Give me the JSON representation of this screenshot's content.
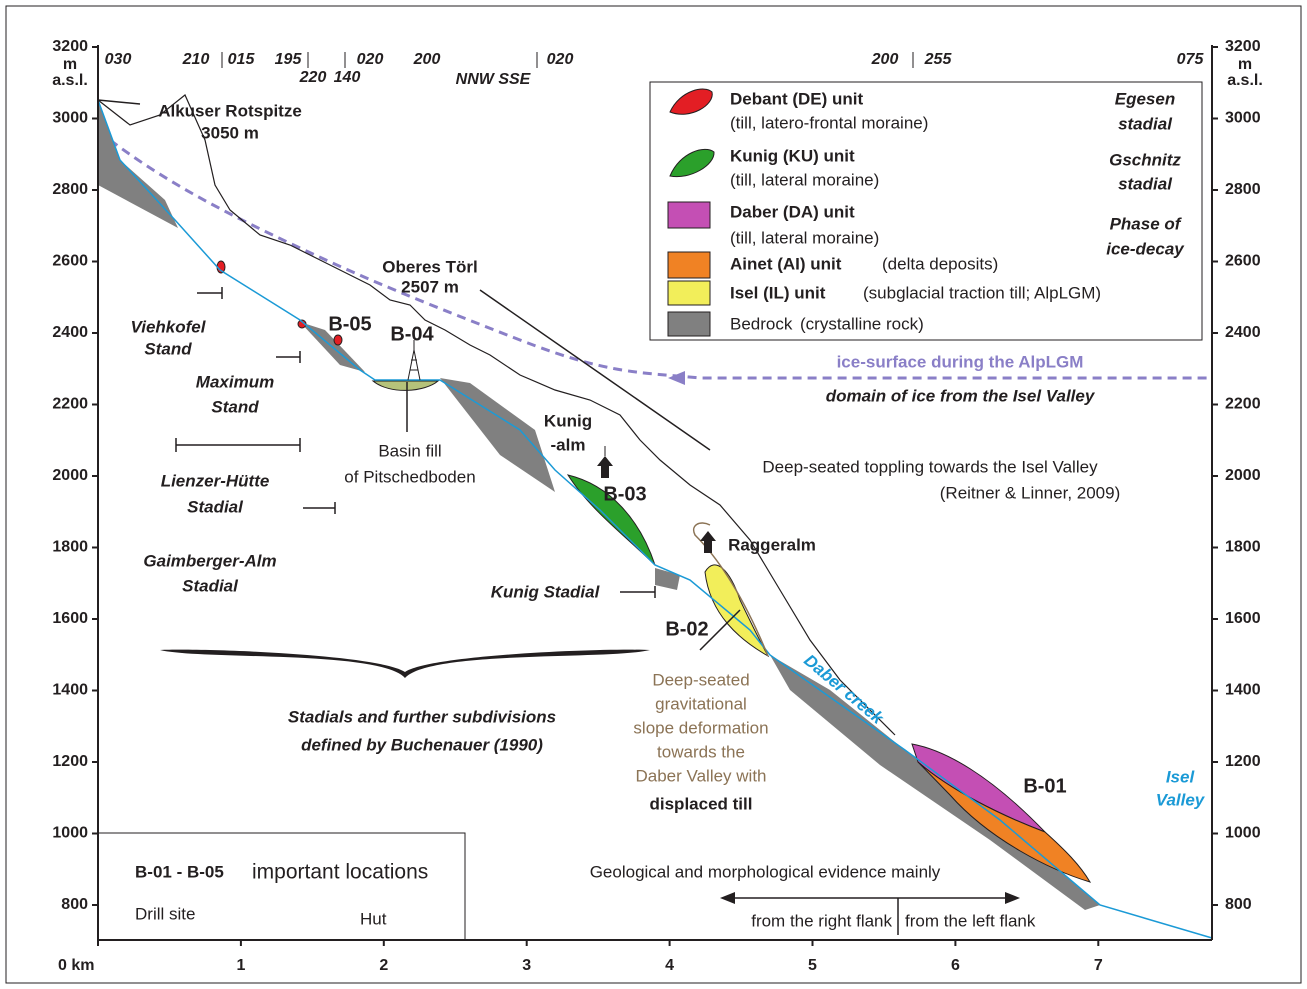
{
  "axes": {
    "x_ticks": [
      {
        "value": 0,
        "label": "0 km"
      },
      1,
      2,
      3,
      4,
      5,
      6,
      7
    ],
    "y_ticks": [
      800,
      1000,
      1200,
      1400,
      1600,
      1800,
      2000,
      2200,
      2400,
      2600,
      2800,
      3000,
      3200
    ],
    "y_unit": [
      "m",
      "a.s.l."
    ]
  },
  "bearings": [
    "030",
    "210",
    "015",
    "195",
    "220",
    "140",
    "020",
    "200",
    "NNW SSE",
    "020",
    "200",
    "255",
    "075"
  ],
  "legend": {
    "items": [
      {
        "name": "Debant (DE) unit",
        "detail": "(till, latero-frontal moraine)"
      },
      {
        "name": "Kunig (KU) unit",
        "detail": "(till, lateral moraine)"
      },
      {
        "name": "Daber (DA) unit",
        "detail": "(till, lateral moraine)"
      },
      {
        "name": "Ainet (AI) unit",
        "detail": "(delta deposits)"
      },
      {
        "name": "Isel (IL) unit",
        "detail": "(subglacial traction till; AlpLGM)"
      },
      {
        "name": "Bedrock",
        "detail": "(crystalline rock)"
      }
    ],
    "groups": [
      [
        "Egesen",
        "stadial"
      ],
      [
        "Gschnitz",
        "stadial"
      ],
      [
        "Phase of",
        "ice-decay"
      ]
    ]
  },
  "labels": {
    "peak": [
      "Alkuser Rotspitze",
      "3050 m"
    ],
    "pass": [
      "Oberes Törl",
      "2507 m"
    ],
    "stands": [
      [
        "Viehkofel",
        "Stand"
      ],
      [
        "Maximum",
        "Stand"
      ],
      [
        "Lienzer-Hütte",
        "Stadial"
      ],
      [
        "Gaimberger-Alm",
        "Stadial"
      ]
    ],
    "kunig_stadial": "Kunig Stadial",
    "sites": [
      "B-05",
      "B-04",
      "B-03",
      "B-02",
      "B-01"
    ],
    "basin": [
      "Basin fill",
      "of Pitschedboden"
    ],
    "kunig_alm": [
      "Kunig",
      "-alm"
    ],
    "raggeralm": "Raggeralm",
    "toppling": [
      "Deep-seated toppling towards the Isel Valley",
      "(Reitner & Linner, 2009)"
    ],
    "ice_surface": "ice-surface during the AlpLGM",
    "ice_domain": "domain of ice from the Isel Valley",
    "stadials": [
      "Stadials and further subdivisions",
      "defined by Buchenauer (1990)"
    ],
    "deformation": [
      "Deep-seated",
      "gravitational",
      "slope deformation",
      "towards the",
      "Daber Valley with",
      "displaced till"
    ],
    "daber_creek": "Daber creek",
    "isel_valley": [
      "Isel",
      "Valley"
    ]
  },
  "key": {
    "range": "B-01 - B-05",
    "meaning": "important locations",
    "drill": "Drill site",
    "hut": "Hut"
  },
  "evidence": {
    "title": "Geological and morphological evidence mainly",
    "right": "from the right flank",
    "left": "from the left flank"
  }
}
